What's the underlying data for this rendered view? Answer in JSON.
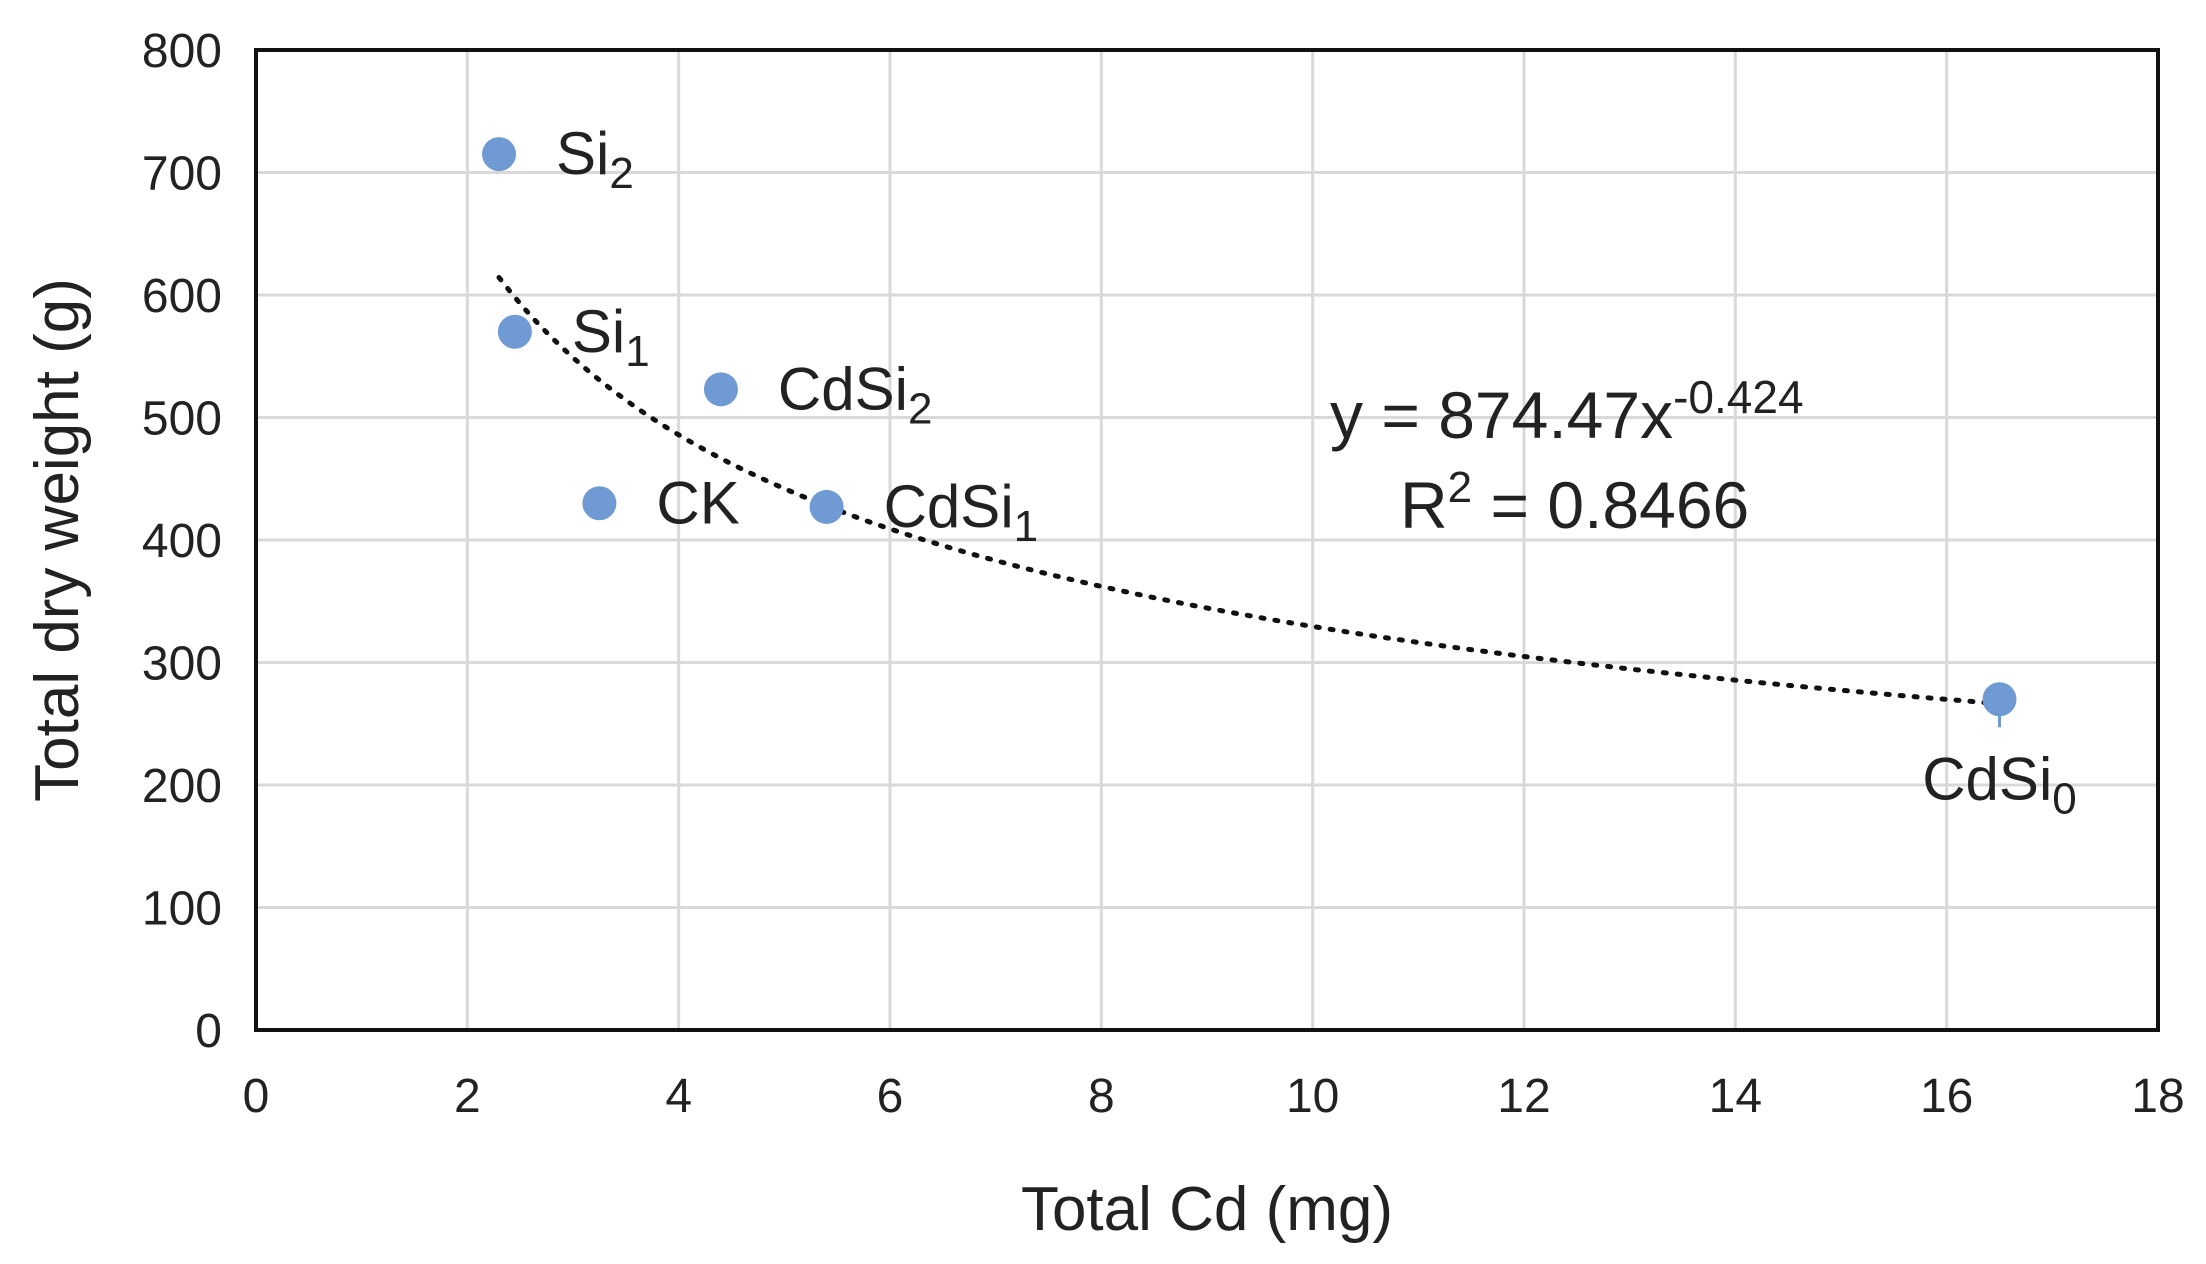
{
  "chart_data": {
    "type": "scatter",
    "title": "",
    "xlabel": "Total Cd (mg)",
    "ylabel": "Total dry weight (g)",
    "xlim": [
      0,
      18
    ],
    "ylim": [
      0,
      800
    ],
    "xticks": [
      "0",
      "2",
      "4",
      "6",
      "8",
      "10",
      "12",
      "14",
      "16",
      "18"
    ],
    "yticks": [
      "0",
      "100",
      "200",
      "300",
      "400",
      "500",
      "600",
      "700",
      "800"
    ],
    "grid": true,
    "marker_color": "#6f9ad4",
    "points": [
      {
        "label_base": "Si",
        "label_sub": "2",
        "x": 2.3,
        "y": 715,
        "label_pos": "right"
      },
      {
        "label_base": "Si",
        "label_sub": "1",
        "x": 2.45,
        "y": 570,
        "label_pos": "right"
      },
      {
        "label_base": "CdSi",
        "label_sub": "2",
        "x": 4.4,
        "y": 523,
        "label_pos": "right"
      },
      {
        "label_base": "CK",
        "label_sub": "",
        "x": 3.25,
        "y": 430,
        "label_pos": "right"
      },
      {
        "label_base": "CdSi",
        "label_sub": "1",
        "x": 5.4,
        "y": 427,
        "label_pos": "right"
      },
      {
        "label_base": "CdSi",
        "label_sub": "0",
        "x": 16.5,
        "y": 270,
        "label_pos": "below"
      }
    ],
    "trendline": {
      "type": "power",
      "a": 874.47,
      "b": -0.424,
      "x_from": 2.3,
      "x_to": 16.5,
      "equation_main": "y = 874.47x",
      "equation_exp": "-0.424",
      "r2_main": "R",
      "r2_sup": "2",
      "r2_value": " = 0.8466"
    }
  }
}
